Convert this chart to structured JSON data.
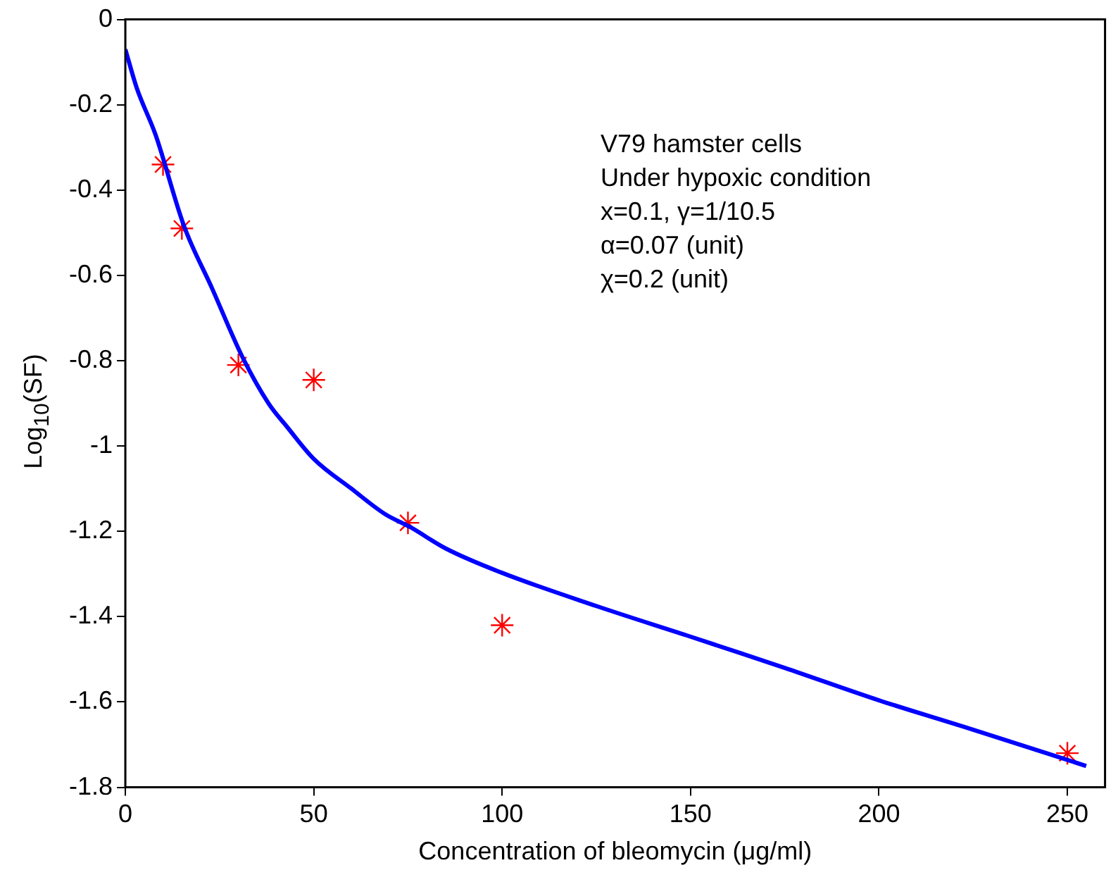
{
  "chart_data": {
    "type": "line",
    "xlabel": "Concentration of bleomycin (μg/ml)",
    "ylabel": "Log$_{10}$(SF)",
    "xlim": [
      0,
      260
    ],
    "xticks": [
      0,
      50,
      100,
      150,
      200,
      250
    ],
    "ylim": [
      -1.8,
      0
    ],
    "yticks": [
      -1.8,
      -1.6,
      -1.4,
      -1.2,
      -1,
      -0.8,
      -0.6,
      -0.4,
      -0.2,
      0
    ],
    "grid": false,
    "legend": false,
    "annotations": [
      "V79 hamster cells",
      "Under hypoxic condition",
      "x=0.1, γ=1/10.5",
      "α=0.07 (unit)",
      "χ=0.2 (unit)"
    ],
    "series": [
      {
        "color": "#0000ff",
        "marker": "none",
        "line_style": "solid",
        "x": [
          0,
          3,
          8,
          15.6,
          23,
          31,
          38,
          43,
          50,
          60,
          69,
          75.6,
          85,
          99.6,
          125,
          149,
          160.7,
          175,
          200,
          225,
          255
        ],
        "values": [
          -0.07,
          -0.16,
          -0.27,
          -0.485,
          -0.63,
          -0.79,
          -0.9,
          -0.956,
          -1.03,
          -1.1,
          -1.16,
          -1.19,
          -1.24,
          -1.296,
          -1.375,
          -1.444,
          -1.478,
          -1.52,
          -1.596,
          -1.665,
          -1.75
        ]
      },
      {
        "type": "scatter",
        "color": "#ff0000",
        "marker": "cross",
        "x": [
          10,
          15,
          30,
          50,
          75,
          100,
          250
        ],
        "values": [
          -0.34,
          -0.49,
          -0.81,
          -0.845,
          -1.18,
          -1.42,
          -1.72
        ]
      }
    ]
  }
}
